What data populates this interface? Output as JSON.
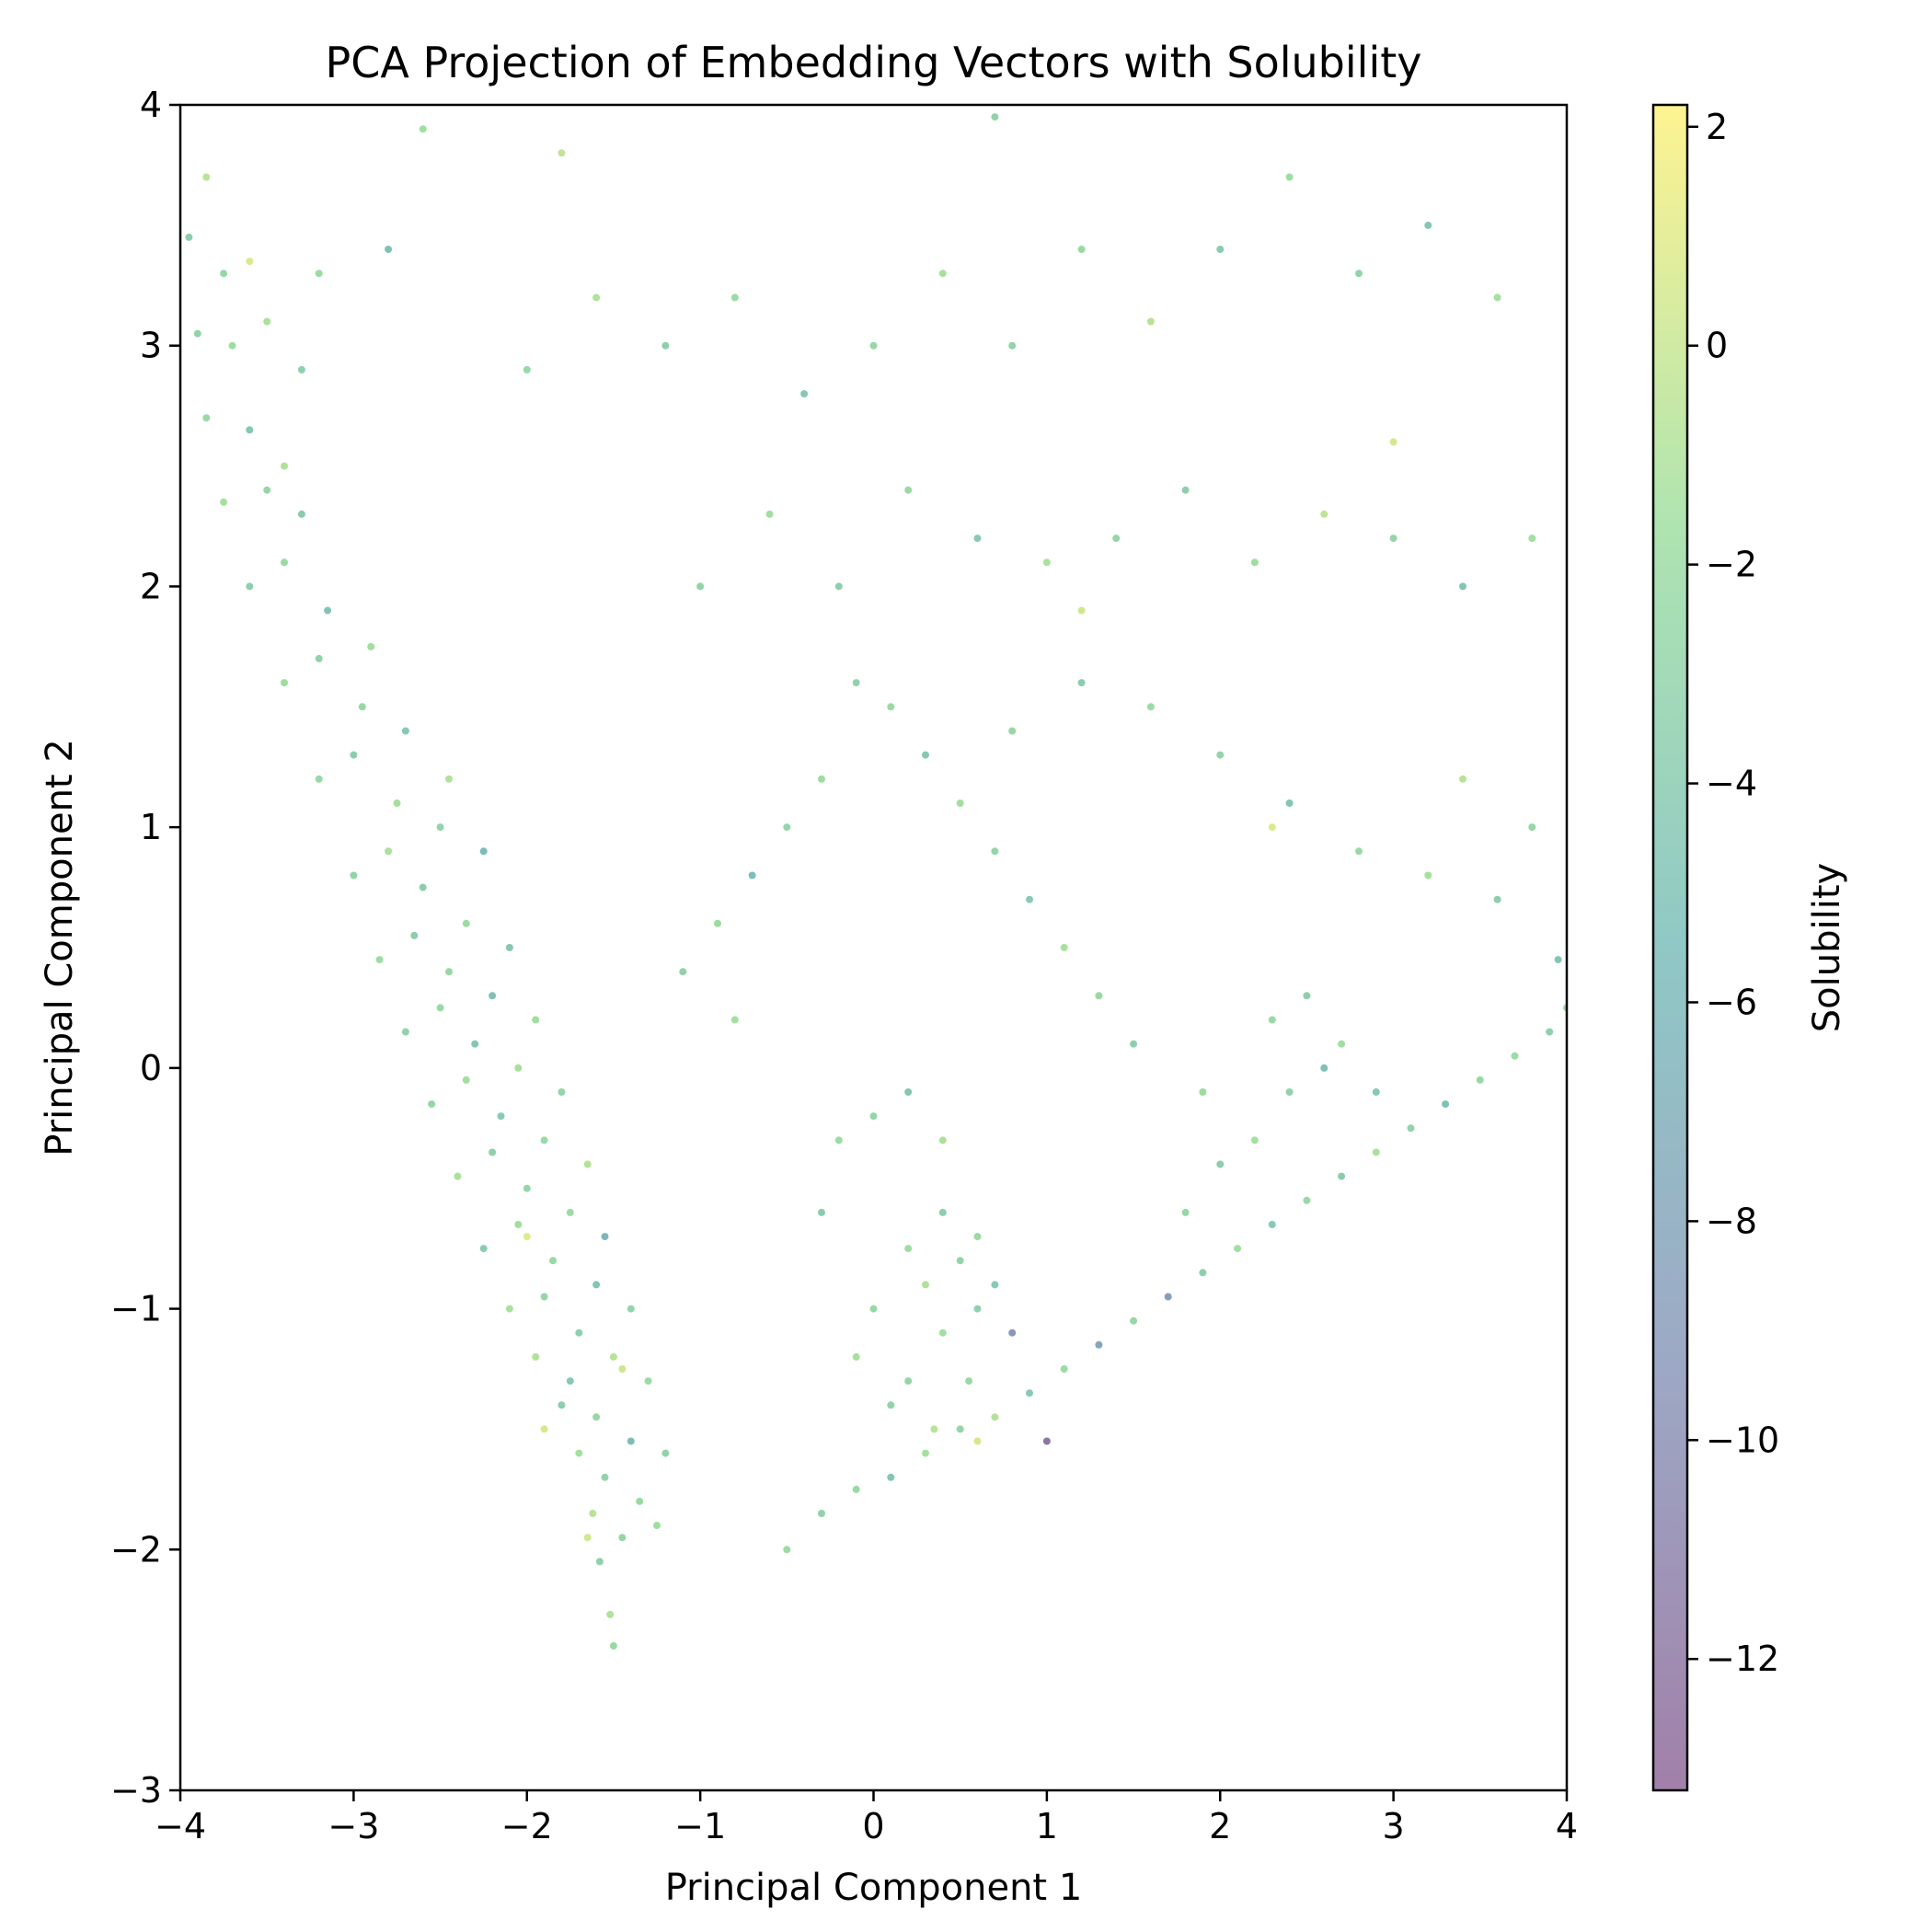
{
  "chart_data": {
    "type": "scatter",
    "title": "PCA Projection of Embedding Vectors with Solubility",
    "xlabel": "Principal Component 1",
    "ylabel": "Principal Component 2",
    "xlim": [
      -4,
      4
    ],
    "ylim": [
      -3,
      4
    ],
    "xticks": [
      -4,
      -3,
      -2,
      -1,
      0,
      1,
      2,
      3,
      4
    ],
    "yticks": [
      -3,
      -2,
      -1,
      0,
      1,
      2,
      3,
      4
    ],
    "xtick_labels": [
      "−4",
      "−3",
      "−2",
      "−1",
      "0",
      "1",
      "2",
      "3",
      "4"
    ],
    "ytick_labels": [
      "−3",
      "−2",
      "−1",
      "0",
      "1",
      "2",
      "3",
      "4"
    ],
    "grid": false,
    "colorbar": {
      "label": "Solubility",
      "colormap": "viridis",
      "alpha": 0.5,
      "range": [
        -13.2,
        2.2
      ],
      "ticks": [
        2,
        0,
        -2,
        -4,
        -6,
        -8,
        -10,
        -12
      ],
      "tick_labels": [
        "2",
        "0",
        "−2",
        "−4",
        "−6",
        "−8",
        "−10",
        "−12"
      ]
    },
    "point_alpha": 0.6,
    "series": [
      {
        "points": [
          [
            -1.5,
            -2.4,
            -2.1
          ],
          [
            -1.52,
            -2.27,
            -1.0
          ],
          [
            -1.58,
            -2.05,
            -3.2
          ],
          [
            -1.62,
            -1.85,
            -0.6
          ],
          [
            -1.45,
            -1.95,
            -2.7
          ],
          [
            -1.7,
            -1.6,
            -1.4
          ],
          [
            -1.55,
            -1.7,
            -2.9
          ],
          [
            -1.8,
            -1.4,
            -3.6
          ],
          [
            -1.35,
            -1.8,
            -2.2
          ],
          [
            -1.25,
            -1.9,
            -1.7
          ],
          [
            -1.95,
            -1.2,
            -0.9
          ],
          [
            -1.75,
            -1.3,
            -4.1
          ],
          [
            -1.6,
            -1.45,
            -2.4
          ],
          [
            -1.4,
            -1.55,
            -5.2
          ],
          [
            -1.2,
            -1.6,
            -3.0
          ],
          [
            -2.1,
            -1.0,
            -1.2
          ],
          [
            -1.9,
            -0.95,
            -2.6
          ],
          [
            -1.7,
            -1.1,
            -3.3
          ],
          [
            -1.5,
            -1.2,
            -0.7
          ],
          [
            -1.3,
            -1.3,
            -2.0
          ],
          [
            -2.25,
            -0.75,
            -3.8
          ],
          [
            -2.05,
            -0.65,
            -1.6
          ],
          [
            -1.85,
            -0.8,
            -2.3
          ],
          [
            -1.6,
            -0.9,
            -4.6
          ],
          [
            -1.4,
            -1.0,
            -2.8
          ],
          [
            -2.4,
            -0.45,
            -1.1
          ],
          [
            -2.2,
            -0.35,
            -3.4
          ],
          [
            -2.0,
            -0.5,
            -2.5
          ],
          [
            -1.75,
            -0.6,
            -1.9
          ],
          [
            -1.55,
            -0.7,
            -6.1
          ],
          [
            -2.55,
            -0.15,
            -2.7
          ],
          [
            -2.35,
            -0.05,
            -1.5
          ],
          [
            -2.15,
            -0.2,
            -3.9
          ],
          [
            -1.9,
            -0.3,
            -2.1
          ],
          [
            -1.65,
            -0.4,
            -0.8
          ],
          [
            -2.7,
            0.15,
            -3.1
          ],
          [
            -2.5,
            0.25,
            -2.2
          ],
          [
            -2.3,
            0.1,
            -4.4
          ],
          [
            -2.05,
            0.0,
            -1.3
          ],
          [
            -1.8,
            -0.1,
            -2.6
          ],
          [
            -2.85,
            0.45,
            -1.8
          ],
          [
            -2.65,
            0.55,
            -3.5
          ],
          [
            -2.45,
            0.4,
            -2.4
          ],
          [
            -2.2,
            0.3,
            -5.0
          ],
          [
            -1.95,
            0.2,
            -1.6
          ],
          [
            -3.0,
            0.8,
            -2.9
          ],
          [
            -2.8,
            0.9,
            -1.2
          ],
          [
            -2.6,
            0.75,
            -3.7
          ],
          [
            -2.35,
            0.6,
            -2.0
          ],
          [
            -2.1,
            0.5,
            -4.2
          ],
          [
            -3.2,
            1.2,
            -2.3
          ],
          [
            -3.0,
            1.3,
            -3.6
          ],
          [
            -2.75,
            1.1,
            -1.4
          ],
          [
            -2.5,
            1.0,
            -2.8
          ],
          [
            -2.25,
            0.9,
            -5.5
          ],
          [
            -3.4,
            1.6,
            -1.7
          ],
          [
            -3.2,
            1.7,
            -3.0
          ],
          [
            -2.95,
            1.5,
            -2.5
          ],
          [
            -2.7,
            1.4,
            -4.0
          ],
          [
            -2.45,
            1.2,
            -0.9
          ],
          [
            -3.6,
            2.0,
            -3.3
          ],
          [
            -3.4,
            2.1,
            -2.1
          ],
          [
            -3.15,
            1.9,
            -4.7
          ],
          [
            -2.9,
            1.75,
            -1.5
          ],
          [
            -3.5,
            2.4,
            -2.6
          ],
          [
            -3.75,
            2.35,
            -1.3
          ],
          [
            -3.3,
            2.3,
            -3.8
          ],
          [
            -3.85,
            2.7,
            -2.2
          ],
          [
            -3.6,
            2.65,
            -4.3
          ],
          [
            -3.4,
            2.5,
            -1.0
          ],
          [
            -3.9,
            3.05,
            -2.9
          ],
          [
            -3.7,
            3.0,
            -1.8
          ],
          [
            -3.95,
            3.45,
            -3.5
          ],
          [
            -3.75,
            3.3,
            -2.4
          ],
          [
            -3.85,
            3.7,
            -0.5
          ],
          [
            -3.5,
            3.1,
            -1.1
          ],
          [
            -3.3,
            2.9,
            -3.2
          ],
          [
            -3.2,
            3.3,
            -2.0
          ],
          [
            -2.8,
            3.4,
            -4.9
          ],
          [
            -2.6,
            3.9,
            -1.6
          ],
          [
            -0.5,
            -2.0,
            -1.9
          ],
          [
            -0.3,
            -1.85,
            -3.1
          ],
          [
            -0.1,
            -1.75,
            -2.3
          ],
          [
            0.1,
            -1.7,
            -4.5
          ],
          [
            0.3,
            -1.6,
            -1.4
          ],
          [
            0.5,
            -1.5,
            -2.7
          ],
          [
            0.7,
            -1.45,
            -0.8
          ],
          [
            0.9,
            -1.35,
            -3.9
          ],
          [
            1.1,
            -1.25,
            -2.0
          ],
          [
            1.3,
            -1.15,
            -7.8
          ],
          [
            1.5,
            -1.05,
            -2.5
          ],
          [
            1.7,
            -0.95,
            -8.6
          ],
          [
            1.9,
            -0.85,
            -3.3
          ],
          [
            2.1,
            -0.75,
            -1.6
          ],
          [
            2.3,
            -0.65,
            -4.1
          ],
          [
            2.5,
            -0.55,
            -2.2
          ],
          [
            2.7,
            -0.45,
            -3.7
          ],
          [
            2.9,
            -0.35,
            -1.2
          ],
          [
            3.1,
            -0.25,
            -2.9
          ],
          [
            3.3,
            -0.15,
            -5.1
          ],
          [
            3.5,
            -0.05,
            -2.4
          ],
          [
            3.7,
            0.05,
            -1.8
          ],
          [
            3.9,
            0.15,
            -3.4
          ],
          [
            4.0,
            0.25,
            -2.1
          ],
          [
            3.95,
            0.45,
            -4.6
          ],
          [
            0.2,
            -1.3,
            -2.6
          ],
          [
            0.4,
            -1.1,
            -1.5
          ],
          [
            0.6,
            -1.0,
            -3.2
          ],
          [
            0.3,
            -0.9,
            -0.9
          ],
          [
            0.5,
            -0.8,
            -2.8
          ],
          [
            0.7,
            -0.9,
            -4.0
          ],
          [
            0.2,
            -0.75,
            -1.7
          ],
          [
            0.4,
            -0.6,
            -3.5
          ],
          [
            0.6,
            -0.7,
            -2.1
          ],
          [
            0.8,
            -1.1,
            -9.4
          ],
          [
            0.0,
            -1.0,
            -2.4
          ],
          [
            -0.1,
            -1.2,
            -1.3
          ],
          [
            0.1,
            -1.4,
            -3.0
          ],
          [
            0.35,
            -1.5,
            -0.6
          ],
          [
            0.55,
            -1.3,
            -2.2
          ],
          [
            -0.3,
            -0.6,
            -3.8
          ],
          [
            -0.2,
            -0.3,
            -1.9
          ],
          [
            0.0,
            -0.2,
            -2.7
          ],
          [
            0.2,
            -0.1,
            -4.3
          ],
          [
            0.4,
            -0.3,
            -1.1
          ],
          [
            1.8,
            -0.6,
            -2.5
          ],
          [
            2.0,
            -0.4,
            -3.6
          ],
          [
            2.2,
            -0.3,
            -1.4
          ],
          [
            2.4,
            -0.1,
            -2.9
          ],
          [
            2.6,
            0.0,
            -5.0
          ],
          [
            2.3,
            0.2,
            -2.2
          ],
          [
            2.5,
            0.3,
            -3.3
          ],
          [
            2.7,
            0.1,
            -1.6
          ],
          [
            2.9,
            -0.1,
            -4.1
          ],
          [
            1.9,
            -0.1,
            -2.0
          ],
          [
            1.5,
            0.1,
            -3.4
          ],
          [
            1.3,
            0.3,
            -2.3
          ],
          [
            1.1,
            0.5,
            -1.2
          ],
          [
            0.9,
            0.7,
            -3.9
          ],
          [
            0.7,
            0.9,
            -2.6
          ],
          [
            0.5,
            1.1,
            -1.5
          ],
          [
            0.3,
            1.3,
            -4.4
          ],
          [
            0.1,
            1.5,
            -2.1
          ],
          [
            -0.1,
            1.6,
            -3.0
          ],
          [
            -0.3,
            1.2,
            -1.8
          ],
          [
            -0.5,
            1.0,
            -2.7
          ],
          [
            -0.7,
            0.8,
            -5.3
          ],
          [
            -0.9,
            0.6,
            -2.0
          ],
          [
            -1.1,
            0.4,
            -3.1
          ],
          [
            -0.8,
            0.2,
            -1.4
          ],
          [
            0.8,
            1.4,
            -2.4
          ],
          [
            1.2,
            1.6,
            -3.7
          ],
          [
            1.6,
            1.5,
            -1.9
          ],
          [
            2.0,
            1.3,
            -2.8
          ],
          [
            2.4,
            1.1,
            -4.5
          ],
          [
            2.8,
            0.9,
            -2.2
          ],
          [
            3.2,
            0.8,
            -1.3
          ],
          [
            3.6,
            0.7,
            -3.6
          ],
          [
            3.8,
            1.0,
            -2.5
          ],
          [
            3.4,
            1.2,
            -0.7
          ],
          [
            -1.0,
            2.0,
            -2.9
          ],
          [
            -0.6,
            2.3,
            -1.6
          ],
          [
            -0.2,
            2.0,
            -3.4
          ],
          [
            0.2,
            2.4,
            -2.1
          ],
          [
            0.6,
            2.2,
            -4.0
          ],
          [
            1.0,
            2.1,
            -1.2
          ],
          [
            1.4,
            2.2,
            -2.6
          ],
          [
            1.8,
            2.4,
            -3.3
          ],
          [
            2.2,
            2.1,
            -1.8
          ],
          [
            2.6,
            2.3,
            -0.4
          ],
          [
            3.0,
            2.2,
            -2.7
          ],
          [
            3.4,
            2.0,
            -4.6
          ],
          [
            3.8,
            2.2,
            -1.5
          ],
          [
            -2.0,
            2.9,
            -2.3
          ],
          [
            -1.6,
            3.2,
            -1.0
          ],
          [
            -1.2,
            3.0,
            -3.5
          ],
          [
            -0.8,
            3.2,
            -2.0
          ],
          [
            -0.4,
            2.8,
            -4.2
          ],
          [
            0.0,
            3.0,
            -2.5
          ],
          [
            0.4,
            3.3,
            -1.3
          ],
          [
            0.8,
            3.0,
            -3.0
          ],
          [
            1.2,
            3.4,
            -2.2
          ],
          [
            1.6,
            3.1,
            -0.6
          ],
          [
            2.0,
            3.4,
            -3.8
          ],
          [
            2.4,
            3.7,
            -1.7
          ],
          [
            2.8,
            3.3,
            -2.9
          ],
          [
            3.2,
            3.5,
            -4.4
          ],
          [
            3.6,
            3.2,
            -1.4
          ],
          [
            -1.8,
            3.8,
            -0.3
          ],
          [
            0.7,
            3.95,
            -3.1
          ],
          [
            -1.9,
            -1.5,
            0.6
          ],
          [
            -1.65,
            -1.95,
            0.4
          ],
          [
            -2.0,
            -0.7,
            0.9
          ],
          [
            -1.45,
            -1.25,
            0.2
          ],
          [
            0.6,
            -1.55,
            0.5
          ],
          [
            1.2,
            1.9,
            0.3
          ],
          [
            2.3,
            1.0,
            0.8
          ],
          [
            -3.6,
            3.35,
            0.7
          ],
          [
            3.0,
            2.6,
            0.5
          ],
          [
            1.0,
            -1.55,
            -12.0
          ]
        ]
      }
    ]
  }
}
